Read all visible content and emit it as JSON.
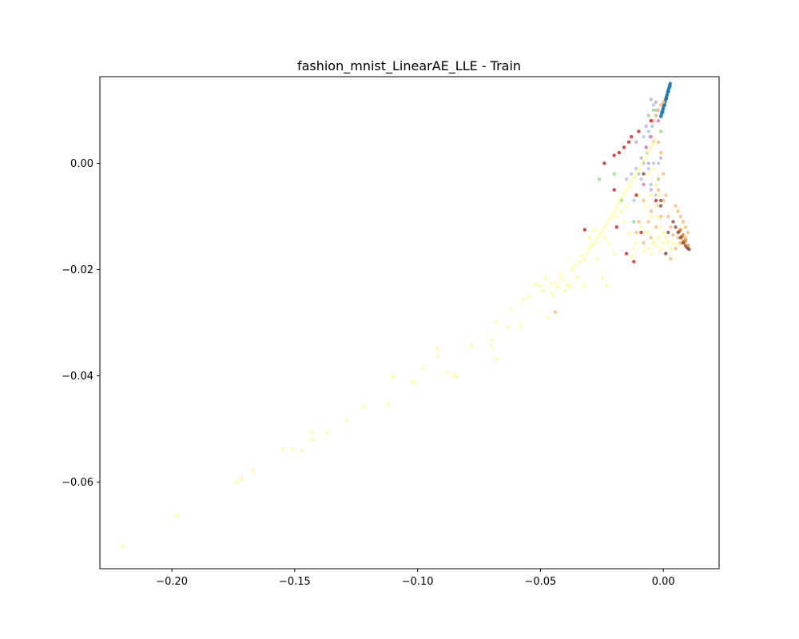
{
  "chart_data": {
    "type": "scatter",
    "title": "fashion_mnist_LinearAE_LLE - Train",
    "xlabel": "",
    "ylabel": "",
    "xlim": [
      -0.2293,
      0.0227
    ],
    "ylim": [
      -0.0763,
      0.0163
    ],
    "grid": false,
    "x_ticks": [
      {
        "value": -0.2,
        "label": "−0.20"
      },
      {
        "value": -0.15,
        "label": "−0.15"
      },
      {
        "value": -0.1,
        "label": "−0.10"
      },
      {
        "value": -0.05,
        "label": "−0.05"
      },
      {
        "value": 0.0,
        "label": "0.00"
      }
    ],
    "y_ticks": [
      {
        "value": 0.0,
        "label": "0.00"
      },
      {
        "value": -0.02,
        "label": "−0.02"
      },
      {
        "value": -0.04,
        "label": "−0.04"
      },
      {
        "value": -0.06,
        "label": "−0.06"
      }
    ],
    "series": [
      {
        "color": "#1f77b4",
        "points": [
          [
            0.0028,
            0.015
          ],
          [
            0.0026,
            0.0147
          ],
          [
            0.0024,
            0.0143
          ],
          [
            0.0022,
            0.014
          ],
          [
            0.002,
            0.0137
          ],
          [
            0.0018,
            0.0134
          ],
          [
            0.0016,
            0.013
          ],
          [
            0.0014,
            0.0127
          ],
          [
            0.0012,
            0.0124
          ],
          [
            0.001,
            0.0121
          ],
          [
            0.0008,
            0.0117
          ],
          [
            0.0006,
            0.0114
          ],
          [
            0.0004,
            0.0111
          ],
          [
            0.0002,
            0.0108
          ],
          [
            0.0,
            0.0104
          ],
          [
            -0.0002,
            0.0101
          ],
          [
            -0.0004,
            0.0098
          ],
          [
            -0.0006,
            0.0095
          ],
          [
            -0.0008,
            0.0091
          ],
          [
            -0.001,
            0.0088
          ],
          [
            0.0027,
            0.0145
          ],
          [
            0.0021,
            0.0135
          ],
          [
            0.0013,
            0.0122
          ],
          [
            0.0005,
            0.0109
          ],
          [
            -0.0003,
            0.0096
          ]
        ]
      },
      {
        "color": "#aec7e8",
        "points": [
          [
            -0.004,
            0.011
          ],
          [
            -0.003,
            0.01
          ],
          [
            -0.005,
            0.008
          ],
          [
            -0.006,
            0.006
          ],
          [
            -0.0045,
            0.007
          ],
          [
            -0.003,
            0.009
          ],
          [
            -0.0055,
            0.005
          ],
          [
            -0.007,
            0.003
          ],
          [
            -0.0065,
            0.002
          ],
          [
            -0.008,
            0.0
          ],
          [
            -0.006,
            -0.001
          ],
          [
            -0.004,
            0.0
          ],
          [
            -0.002,
            0.0
          ],
          [
            -0.01,
            -0.002
          ],
          [
            -0.011,
            -0.001
          ],
          [
            -0.013,
            -0.002
          ],
          [
            -0.015,
            -0.003
          ],
          [
            -0.008,
            0.005
          ],
          [
            -0.009,
            -0.003
          ],
          [
            -0.005,
            -0.004
          ],
          [
            -0.003,
            -0.006
          ],
          [
            -0.012,
            -0.007
          ],
          [
            -0.002,
            -0.003
          ]
        ]
      },
      {
        "color": "#c5b0d5",
        "points": [
          [
            -0.005,
            0.012
          ],
          [
            -0.003,
            0.0115
          ],
          [
            -0.002,
            0.01
          ],
          [
            -0.007,
            0.007
          ],
          [
            -0.004,
            0.004
          ],
          [
            -0.006,
            0.0
          ],
          [
            -0.003,
            -0.004
          ],
          [
            -0.005,
            -0.005
          ],
          [
            -0.001,
            0.001
          ],
          [
            -0.009,
            0.001
          ],
          [
            -0.011,
            0.004
          ],
          [
            -0.0025,
            -0.008
          ]
        ]
      },
      {
        "color": "#ffff99",
        "points": [
          [
            -0.22,
            -0.072
          ],
          [
            -0.198,
            -0.0663
          ],
          [
            -0.174,
            -0.0601
          ],
          [
            -0.172,
            -0.0594
          ],
          [
            -0.167,
            -0.0578
          ],
          [
            -0.155,
            -0.0538
          ],
          [
            -0.151,
            -0.0538
          ],
          [
            -0.147,
            -0.0541
          ],
          [
            -0.143,
            -0.0506
          ],
          [
            -0.143,
            -0.0519
          ],
          [
            -0.137,
            -0.0508
          ],
          [
            -0.129,
            -0.0484
          ],
          [
            -0.122,
            -0.0458
          ],
          [
            -0.112,
            -0.0452
          ],
          [
            -0.11,
            -0.0401
          ],
          [
            -0.102,
            -0.0411
          ],
          [
            -0.101,
            -0.0413
          ],
          [
            -0.098,
            -0.0385
          ],
          [
            -0.092,
            -0.0363
          ],
          [
            -0.092,
            -0.0348
          ],
          [
            -0.088,
            -0.0393
          ],
          [
            -0.085,
            -0.0397
          ],
          [
            -0.084,
            -0.0402
          ],
          [
            -0.078,
            -0.0343
          ],
          [
            -0.07,
            -0.0332
          ],
          [
            -0.07,
            -0.0343
          ],
          [
            -0.068,
            -0.0367
          ],
          [
            -0.068,
            -0.0298
          ],
          [
            -0.063,
            -0.0308
          ],
          [
            -0.062,
            -0.0274
          ],
          [
            -0.058,
            -0.0306
          ],
          [
            -0.057,
            -0.0256
          ],
          [
            -0.055,
            -0.0251
          ],
          [
            -0.052,
            -0.0228
          ],
          [
            -0.05,
            -0.023
          ],
          [
            -0.049,
            -0.024
          ],
          [
            -0.048,
            -0.0215
          ],
          [
            -0.047,
            -0.029
          ],
          [
            -0.046,
            -0.0226
          ],
          [
            -0.045,
            -0.0247
          ],
          [
            -0.044,
            -0.0225
          ],
          [
            -0.043,
            -0.0232
          ],
          [
            -0.042,
            -0.021
          ],
          [
            -0.041,
            -0.0217
          ],
          [
            -0.04,
            -0.024
          ],
          [
            -0.039,
            -0.0229
          ],
          [
            -0.038,
            -0.0233
          ],
          [
            -0.037,
            -0.0199
          ],
          [
            -0.036,
            -0.0192
          ],
          [
            -0.035,
            -0.0214
          ],
          [
            -0.034,
            -0.0185
          ],
          [
            -0.033,
            -0.0174
          ],
          [
            -0.032,
            -0.0181
          ],
          [
            -0.031,
            -0.0168
          ],
          [
            -0.03,
            -0.0159
          ],
          [
            -0.029,
            -0.0154
          ],
          [
            -0.028,
            -0.0148
          ],
          [
            -0.027,
            -0.0141
          ],
          [
            -0.026,
            -0.0134
          ],
          [
            -0.025,
            -0.0127
          ],
          [
            -0.024,
            -0.012
          ],
          [
            -0.023,
            -0.0112
          ],
          [
            -0.022,
            -0.0105
          ],
          [
            -0.021,
            -0.0097
          ],
          [
            -0.02,
            -0.009
          ],
          [
            -0.019,
            -0.0082
          ],
          [
            -0.018,
            -0.0074
          ],
          [
            -0.017,
            -0.0066
          ],
          [
            -0.016,
            -0.0058
          ],
          [
            -0.015,
            -0.005
          ],
          [
            -0.014,
            -0.0042
          ],
          [
            -0.013,
            -0.0034
          ],
          [
            -0.012,
            -0.0026
          ],
          [
            -0.011,
            -0.0018
          ],
          [
            -0.01,
            -0.001
          ],
          [
            -0.009,
            -0.0002
          ],
          [
            -0.008,
            0.0006
          ],
          [
            -0.007,
            0.0014
          ],
          [
            -0.006,
            0.0022
          ],
          [
            -0.005,
            0.003
          ],
          [
            -0.004,
            0.0038
          ],
          [
            -0.0035,
            0.0045
          ],
          [
            -0.024,
            -0.014
          ],
          [
            -0.022,
            -0.015
          ],
          [
            -0.02,
            -0.017
          ],
          [
            -0.023,
            -0.023
          ],
          [
            -0.025,
            -0.0215
          ],
          [
            -0.027,
            -0.018
          ],
          [
            -0.032,
            -0.023
          ],
          [
            -0.028,
            -0.0125
          ],
          [
            -0.03,
            -0.014
          ],
          [
            -0.019,
            -0.01
          ],
          [
            -0.017,
            -0.009
          ],
          [
            -0.016,
            -0.011
          ],
          [
            -0.014,
            -0.013
          ],
          [
            -0.015,
            -0.008
          ],
          [
            -0.01,
            -0.006
          ],
          [
            -0.008,
            -0.004
          ],
          [
            -0.006,
            -0.002
          ],
          [
            -0.004,
            -0.001
          ],
          [
            -0.003,
            -0.004
          ],
          [
            -0.005,
            -0.006
          ],
          [
            -0.003,
            -0.008
          ],
          [
            -0.002,
            -0.01
          ],
          [
            -0.001,
            -0.012
          ],
          [
            0.0,
            -0.013
          ],
          [
            0.001,
            -0.014
          ],
          [
            -0.004,
            -0.015
          ],
          [
            -0.006,
            -0.016
          ],
          [
            -0.008,
            -0.0165
          ],
          [
            -0.005,
            -0.017
          ],
          [
            -0.003,
            -0.0155
          ],
          [
            0.0,
            -0.015
          ],
          [
            0.002,
            -0.0148
          ],
          [
            0.004,
            -0.015
          ],
          [
            0.006,
            -0.0152
          ],
          [
            0.003,
            -0.016
          ],
          [
            -0.001,
            -0.016
          ],
          [
            -0.002,
            -0.014
          ],
          [
            -0.007,
            -0.013
          ],
          [
            -0.009,
            -0.012
          ],
          [
            -0.011,
            -0.015
          ],
          [
            -0.012,
            -0.016
          ],
          [
            -0.013,
            -0.0175
          ],
          [
            -0.007,
            -0.008
          ],
          [
            -0.005,
            -0.01
          ],
          [
            -0.002,
            -0.006
          ]
        ]
      },
      {
        "color": "#ffbb78",
        "points": [
          [
            -0.001,
            0.011
          ],
          [
            0.0,
            0.0115
          ],
          [
            -0.002,
            0.01
          ],
          [
            -0.003,
            0.009
          ],
          [
            -0.004,
            0.008
          ],
          [
            0.005,
            -0.008
          ],
          [
            0.006,
            -0.009
          ],
          [
            0.007,
            -0.01
          ],
          [
            0.008,
            -0.011
          ],
          [
            0.009,
            -0.012
          ],
          [
            0.01,
            -0.013
          ],
          [
            0.009,
            -0.014
          ],
          [
            0.008,
            -0.0145
          ],
          [
            0.006,
            -0.014
          ],
          [
            0.004,
            -0.0135
          ],
          [
            0.003,
            -0.012
          ],
          [
            0.002,
            -0.01
          ],
          [
            0.001,
            -0.006
          ],
          [
            0.0,
            -0.002
          ],
          [
            -0.001,
            0.002
          ],
          [
            -0.002,
            0.004
          ],
          [
            -0.001,
            -0.01
          ],
          [
            -0.003,
            -0.012
          ],
          [
            -0.005,
            -0.014
          ],
          [
            -0.008,
            -0.015
          ],
          [
            -0.01,
            -0.011
          ],
          [
            -0.011,
            -0.013
          ],
          [
            -0.005,
            -0.009
          ],
          [
            -0.002,
            -0.005
          ],
          [
            0.0,
            -0.007
          ],
          [
            0.007,
            -0.015
          ],
          [
            0.005,
            -0.016
          ],
          [
            0.003,
            -0.018
          ],
          [
            0.001,
            -0.017
          ],
          [
            -0.006,
            -0.011
          ],
          [
            -0.008,
            -0.007
          ],
          [
            -0.044,
            -0.028
          ],
          [
            -0.002,
            -0.003
          ]
        ]
      },
      {
        "color": "#d62728",
        "points": [
          [
            -0.005,
            0.008
          ],
          [
            -0.01,
            0.006
          ],
          [
            -0.013,
            0.005
          ],
          [
            -0.014,
            0.004
          ],
          [
            -0.016,
            0.003
          ],
          [
            -0.018,
            0.002
          ],
          [
            -0.02,
            0.0015
          ],
          [
            -0.024,
            0.0
          ],
          [
            -0.02,
            -0.005
          ],
          [
            -0.019,
            -0.012
          ],
          [
            -0.032,
            -0.0125
          ],
          [
            -0.015,
            -0.017
          ],
          [
            -0.012,
            -0.0185
          ],
          [
            -0.011,
            -0.006
          ],
          [
            -0.003,
            -0.007
          ],
          [
            -0.009,
            -0.013
          ]
        ]
      },
      {
        "color": "#8c564b",
        "points": [
          [
            0.005,
            -0.012
          ],
          [
            0.006,
            -0.013
          ],
          [
            0.007,
            -0.014
          ],
          [
            0.008,
            -0.015
          ],
          [
            0.009,
            -0.0155
          ],
          [
            0.01,
            -0.016
          ],
          [
            0.0105,
            -0.0162
          ],
          [
            0.0095,
            -0.0158
          ],
          [
            0.0085,
            -0.0148
          ],
          [
            0.0075,
            -0.0138
          ],
          [
            0.0065,
            -0.0128
          ],
          [
            0.004,
            -0.011
          ],
          [
            0.002,
            -0.013
          ],
          [
            -0.001,
            -0.007
          ],
          [
            -0.001,
            -0.008
          ],
          [
            0.001,
            -0.017
          ],
          [
            -0.008,
            -0.002
          ]
        ]
      },
      {
        "color": "#e377c2",
        "points": [
          [
            -0.005,
            0.005
          ],
          [
            -0.002,
            0.008
          ],
          [
            -0.007,
            0.003
          ],
          [
            -0.008,
            -0.004
          ]
        ]
      },
      {
        "color": "#98df8a",
        "points": [
          [
            -0.006,
            0.009
          ],
          [
            -0.004,
            0.01
          ],
          [
            -0.001,
            0.006
          ],
          [
            -0.026,
            -0.003
          ],
          [
            -0.02,
            -0.002
          ],
          [
            -0.017,
            -0.007
          ],
          [
            -0.012,
            -0.011
          ]
        ]
      },
      {
        "color": "#ff7f0e",
        "points": [
          [
            0.008,
            -0.0135
          ],
          [
            0.009,
            -0.0145
          ],
          [
            0.01,
            -0.0155
          ],
          [
            0.007,
            -0.0125
          ]
        ]
      }
    ]
  }
}
